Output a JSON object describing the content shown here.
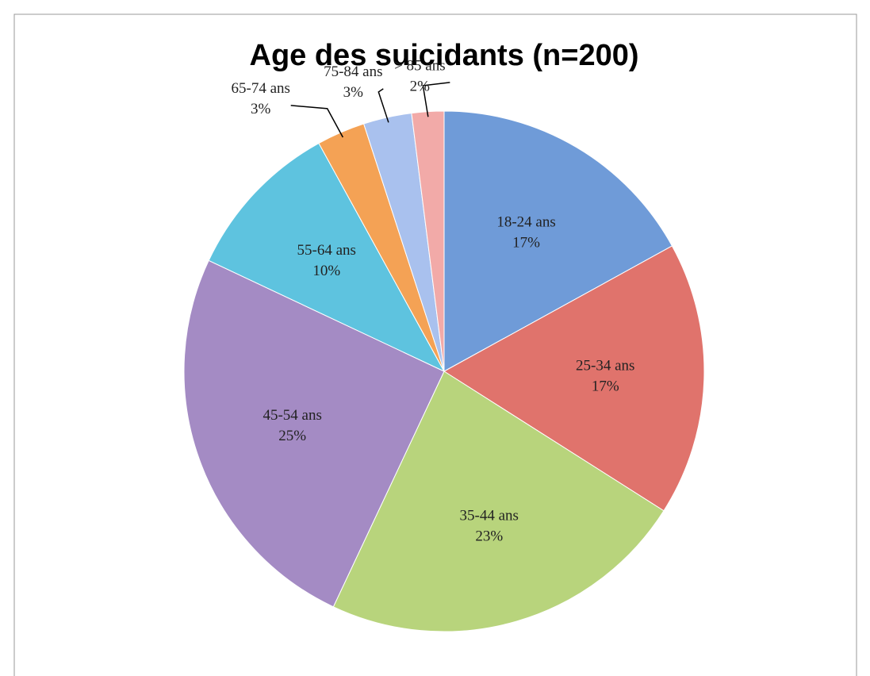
{
  "chart_data": {
    "type": "pie",
    "title": "Age des suicidants (n=200)",
    "categories": [
      "18-24 ans",
      "25-34 ans",
      "35-44 ans",
      "45-54 ans",
      "55-64 ans",
      "65-74 ans",
      "75-84 ans",
      "> 85 ans"
    ],
    "values": [
      17,
      17,
      23,
      25,
      10,
      3,
      3,
      2
    ],
    "value_labels": [
      "17%",
      "17%",
      "23%",
      "25%",
      "10%",
      "3%",
      "3%",
      "2%"
    ],
    "colors": [
      "#6f9bd8",
      "#e0736c",
      "#b8d47c",
      "#a48bc4",
      "#5ec3df",
      "#f4a255",
      "#a9c1ee",
      "#f2aaa8"
    ]
  }
}
